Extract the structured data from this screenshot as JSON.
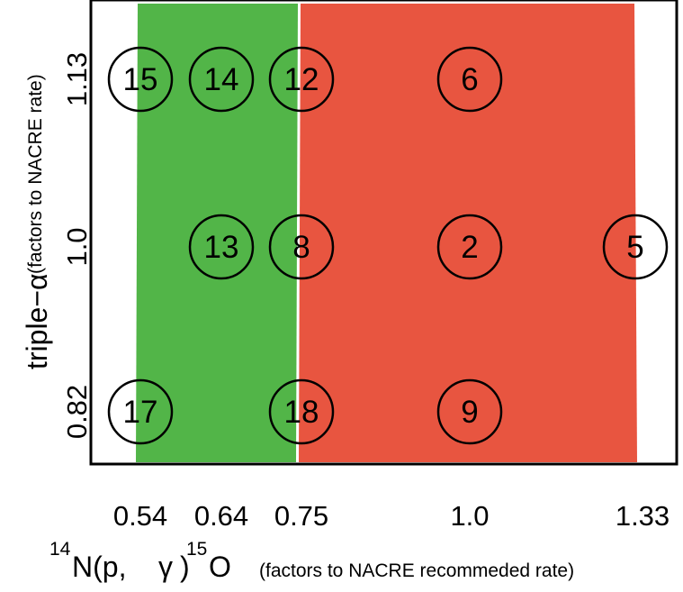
{
  "chart_data": {
    "type": "scatter",
    "x_ticks": [
      "0.54",
      "0.64",
      "0.75",
      "1.0",
      "1.33"
    ],
    "y_ticks": [
      "0.82",
      "1.0",
      "1.13"
    ],
    "xlabel": {
      "iso1_mass": "14",
      "iso1_text": "N(p, ",
      "gamma": "γ",
      "close": ")",
      "iso2_mass": "15",
      "iso2_text": "O",
      "note": "(factors to NACRE recommeded rate)"
    },
    "ylabel": {
      "main": "triple−α",
      "note": "(factors to NACRE rate)"
    },
    "regions": [
      {
        "x_from": "0.54",
        "x_to": "0.75",
        "color": "#52b548"
      },
      {
        "x_from": "0.75",
        "x_to": "1.33",
        "color": "#e85540"
      }
    ],
    "points": [
      {
        "label": "15",
        "x": "0.54",
        "y": "1.13"
      },
      {
        "label": "14",
        "x": "0.64",
        "y": "1.13"
      },
      {
        "label": "12",
        "x": "0.75",
        "y": "1.13"
      },
      {
        "label": "6",
        "x": "1.0",
        "y": "1.13"
      },
      {
        "label": "13",
        "x": "0.64",
        "y": "1.0"
      },
      {
        "label": "8",
        "x": "0.75",
        "y": "1.0"
      },
      {
        "label": "2",
        "x": "1.0",
        "y": "1.0"
      },
      {
        "label": "5",
        "x": "1.33",
        "y": "1.0"
      },
      {
        "label": "17",
        "x": "0.54",
        "y": "0.82"
      },
      {
        "label": "18",
        "x": "0.75",
        "y": "0.82"
      },
      {
        "label": "9",
        "x": "1.0",
        "y": "0.82"
      }
    ],
    "grid": false,
    "colors": {
      "green": "#52b548",
      "red": "#e85540",
      "frame": "#000000"
    }
  }
}
